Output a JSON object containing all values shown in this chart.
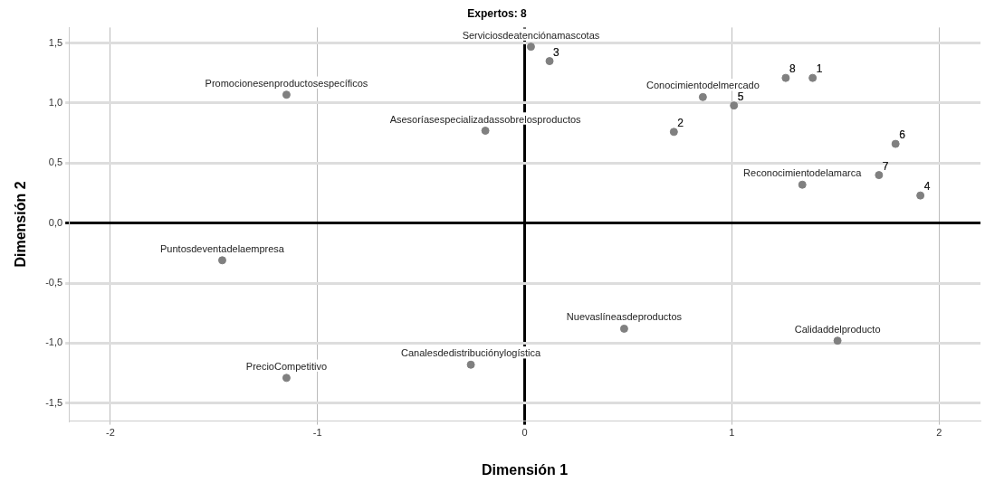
{
  "chart_data": {
    "type": "scatter",
    "title": "Expertos: 8",
    "xlabel": "Dimensión 1",
    "ylabel": "Dimensión 2",
    "series": [
      {
        "color": "#808080",
        "x": [
          0.03,
          0.12,
          1.26,
          1.39,
          0.86,
          1.01,
          -0.19,
          0.72,
          1.79,
          1.71,
          1.34,
          1.91,
          -1.15,
          -1.46,
          -1.15,
          -0.26,
          0.48,
          1.51
        ],
        "values": [
          1.47,
          1.35,
          1.21,
          1.21,
          1.05,
          0.98,
          0.77,
          0.76,
          0.66,
          0.4,
          0.32,
          0.23,
          1.07,
          -0.31,
          -1.29,
          -1.18,
          -0.88,
          -0.98
        ]
      }
    ],
    "annotations": [
      {
        "text": "Serviciosdeatenciónamascotas",
        "x": 0.03,
        "y": 1.47
      },
      {
        "text": "3",
        "x": 0.12,
        "y": 1.35
      },
      {
        "text": "8",
        "x": 1.26,
        "y": 1.21
      },
      {
        "text": "1",
        "x": 1.39,
        "y": 1.21
      },
      {
        "text": "Conocimientodelmercado",
        "x": 0.86,
        "y": 1.05
      },
      {
        "text": "5",
        "x": 1.01,
        "y": 0.98
      },
      {
        "text": "Asesoríasespecializadassobrelosproductos",
        "x": -0.19,
        "y": 0.77
      },
      {
        "text": "2",
        "x": 0.72,
        "y": 0.76
      },
      {
        "text": "6",
        "x": 1.79,
        "y": 0.66
      },
      {
        "text": "7",
        "x": 1.71,
        "y": 0.4
      },
      {
        "text": "Reconocimientodelamarca",
        "x": 1.34,
        "y": 0.32
      },
      {
        "text": "4",
        "x": 1.91,
        "y": 0.23
      },
      {
        "text": "Promocionesenproductosespecíficos",
        "x": -1.15,
        "y": 1.07
      },
      {
        "text": "Puntosdeventadelaempresa",
        "x": -1.46,
        "y": -0.31
      },
      {
        "text": "PrecioCompetitivo",
        "x": -1.15,
        "y": -1.29
      },
      {
        "text": "Canalesdedistribuciónylogística",
        "x": -0.26,
        "y": -1.18
      },
      {
        "text": "Nuevaslíneasdeproductos",
        "x": 0.48,
        "y": -0.88
      },
      {
        "text": "Calidaddelproducto",
        "x": 1.51,
        "y": -0.98
      }
    ],
    "xlim": [
      -2.2,
      2.2
    ],
    "xticks": [
      -2,
      -1,
      0,
      1,
      2
    ],
    "ylim": [
      -1.65,
      1.63
    ],
    "yticks": [
      {
        "value": -1.5,
        "label": "-1,5"
      },
      {
        "value": -1,
        "label": "-1,0"
      },
      {
        "value": -0.5,
        "label": "-0,5"
      },
      {
        "value": 0,
        "label": "0,0"
      },
      {
        "value": 0.5,
        "label": "0,5"
      },
      {
        "value": 1,
        "label": "1,0"
      },
      {
        "value": 1.5,
        "label": "1,5"
      }
    ],
    "grid": true,
    "marker": "circle"
  }
}
